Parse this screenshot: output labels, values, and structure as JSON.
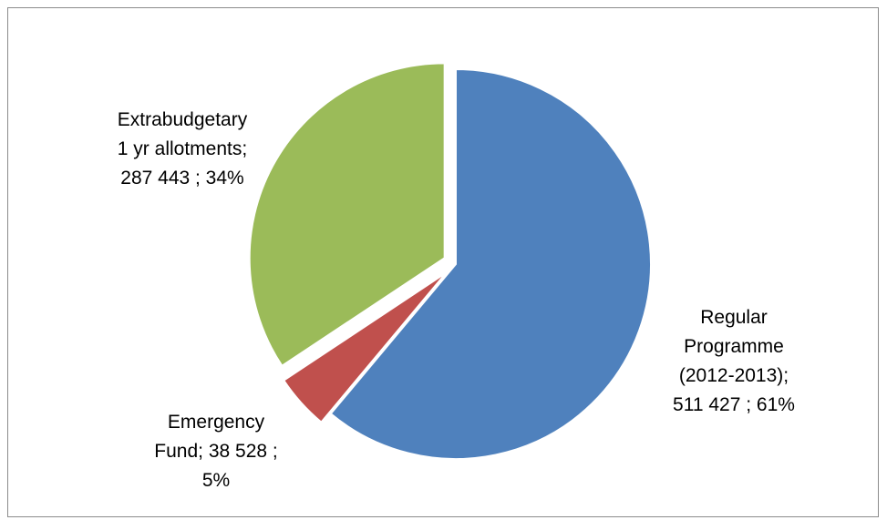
{
  "chart_data": {
    "type": "pie",
    "title": "",
    "start_angle_deg": 0,
    "direction": "clockwise",
    "slices": [
      {
        "name": "Regular Programme (2012-2013)",
        "value": 511427,
        "percent": 61,
        "color": "#4f81bd",
        "exploded": false,
        "label_lines": [
          "Regular",
          "Programme",
          "(2012-2013);",
          "511 427 ; 61%"
        ]
      },
      {
        "name": "Emergency Fund",
        "value": 38528,
        "percent": 5,
        "color": "#c0504d",
        "exploded": true,
        "label_lines": [
          "Emergency",
          "Fund;  38 528 ;",
          "5%"
        ]
      },
      {
        "name": "Extrabudgetary 1 yr allotments",
        "value": 287443,
        "percent": 34,
        "color": "#9bbb59",
        "exploded": true,
        "label_lines": [
          "Extrabudgetary",
          "1 yr allotments;",
          "287 443 ; 34%"
        ]
      }
    ]
  }
}
